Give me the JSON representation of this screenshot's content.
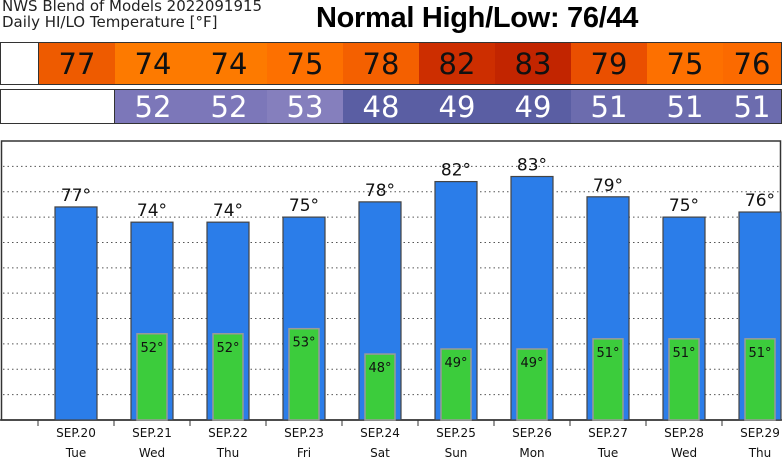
{
  "header": {
    "line1": "NWS Blend of Models 2022091915",
    "line2": "Daily HI/LO Temperature [°F]",
    "normal": "Normal High/Low:  76/44"
  },
  "highs_row": [
    {
      "value": "77",
      "color": "#ee5b00"
    },
    {
      "value": "74",
      "color": "#fd7a00"
    },
    {
      "value": "74",
      "color": "#fd7a00"
    },
    {
      "value": "75",
      "color": "#fd7000"
    },
    {
      "value": "78",
      "color": "#f46000"
    },
    {
      "value": "82",
      "color": "#cd2e00"
    },
    {
      "value": "83",
      "color": "#c22500"
    },
    {
      "value": "79",
      "color": "#ea4f00"
    },
    {
      "value": "75",
      "color": "#fd7000"
    },
    {
      "value": "76",
      "color": "#fb6a00"
    }
  ],
  "lows_row": [
    {
      "value": "",
      "color": "#ffffff"
    },
    {
      "value": "52",
      "color": "#7c77b9"
    },
    {
      "value": "52",
      "color": "#7c77b9"
    },
    {
      "value": "53",
      "color": "#857fbd"
    },
    {
      "value": "48",
      "color": "#5a5ea3"
    },
    {
      "value": "49",
      "color": "#5a5ea3"
    },
    {
      "value": "49",
      "color": "#5a5ea3"
    },
    {
      "value": "51",
      "color": "#6c6cae"
    },
    {
      "value": "51",
      "color": "#6c6cae"
    },
    {
      "value": "51",
      "color": "#6c6cae"
    }
  ],
  "chart_data": {
    "type": "bar",
    "categories": [
      "SEP.20",
      "SEP.21",
      "SEP.22",
      "SEP.23",
      "SEP.24",
      "SEP.25",
      "SEP.26",
      "SEP.27",
      "SEP.28",
      "SEP.29"
    ],
    "weekdays": [
      "Tue",
      "Wed",
      "Thu",
      "Fri",
      "Sat",
      "Sun",
      "Mon",
      "Tue",
      "Wed",
      "Thu"
    ],
    "series": [
      {
        "values": [
          77,
          74,
          74,
          75,
          78,
          82,
          83,
          79,
          75,
          76
        ],
        "labels": [
          "77°",
          "74°",
          "74°",
          "75°",
          "78°",
          "82°",
          "83°",
          "79°",
          "75°",
          "76°"
        ],
        "color": "#2b7de9"
      },
      {
        "values": [
          null,
          52,
          52,
          53,
          48,
          49,
          49,
          51,
          51,
          51
        ],
        "labels": [
          "",
          "52°",
          "52°",
          "53°",
          "48°",
          "49°",
          "49°",
          "51°",
          "51°",
          "51°"
        ],
        "color": "#3ccc3c"
      }
    ],
    "ylim": [
      35,
      90
    ],
    "grid": true
  }
}
